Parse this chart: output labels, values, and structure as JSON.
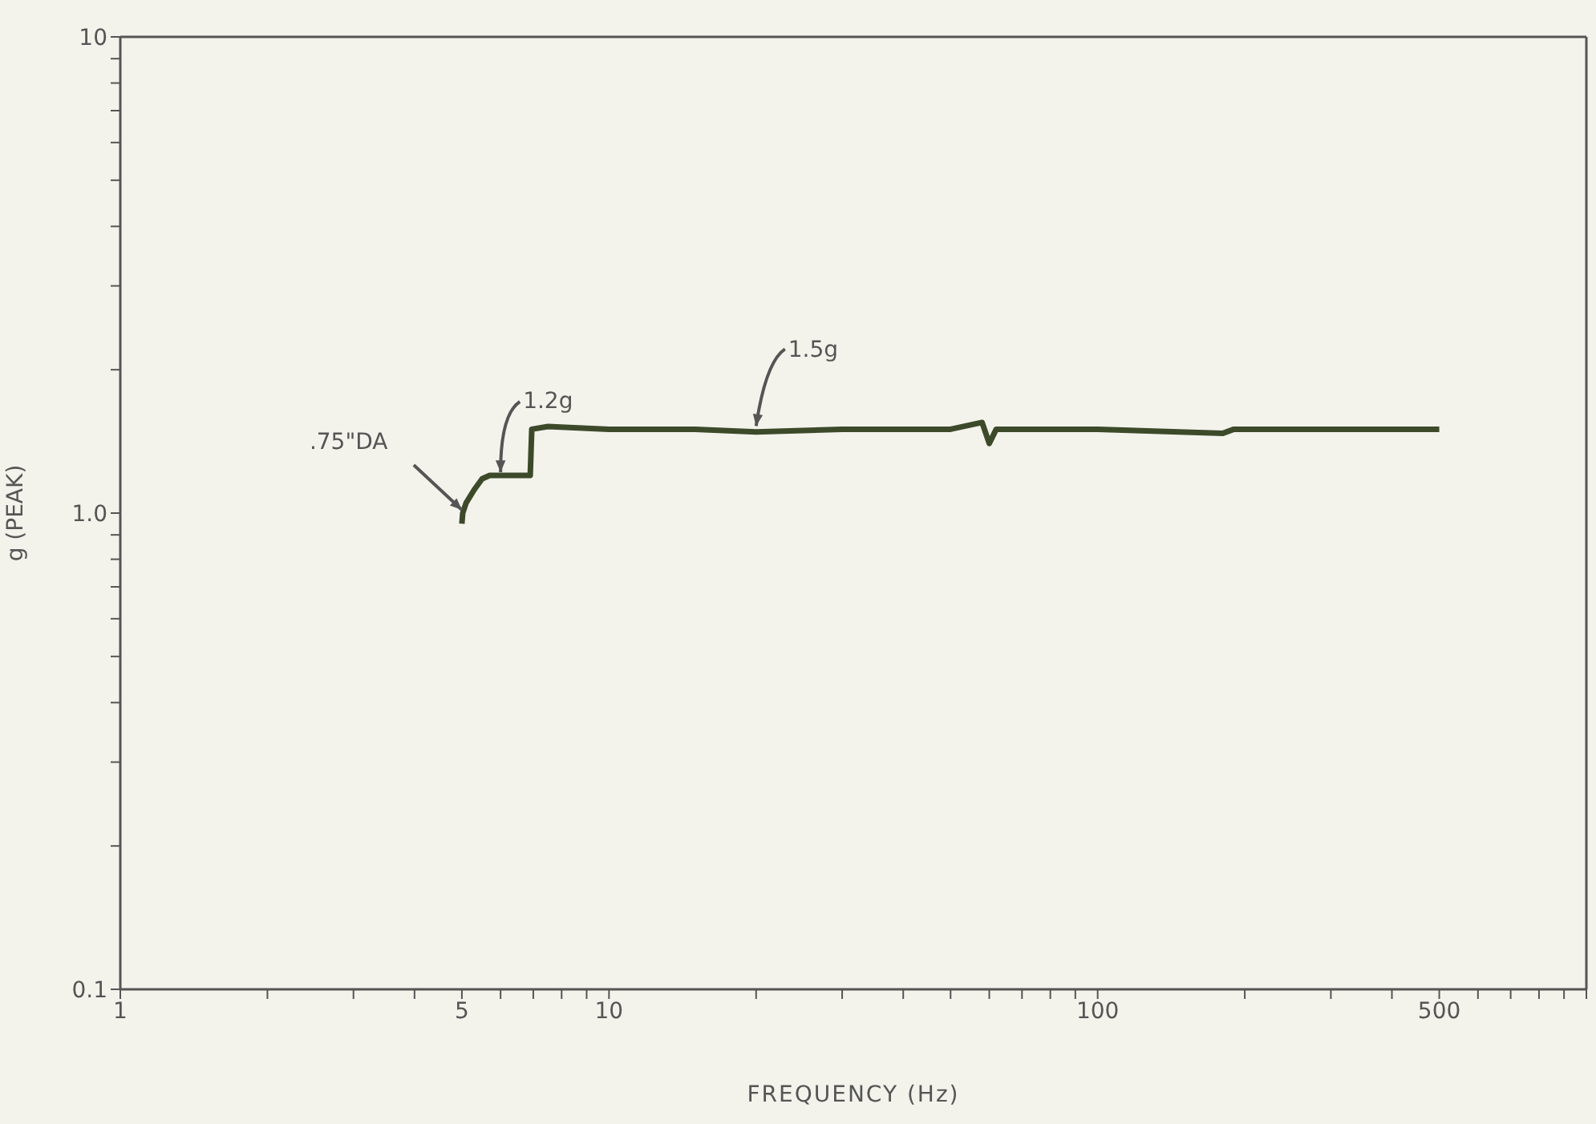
{
  "chart_data": {
    "type": "line",
    "xlabel": "FREQUENCY (Hz)",
    "ylabel": "g (PEAK)",
    "log": "xy",
    "x": [
      5,
      5.02,
      5.1,
      5.3,
      5.5,
      5.7,
      6.9,
      6.95,
      7.5,
      10,
      15,
      20,
      30,
      50,
      58,
      60,
      62,
      100,
      180,
      190,
      300,
      500
    ],
    "series": [
      {
        "color": "#3d4a2a",
        "values": [
          0.95,
          1.0,
          1.05,
          1.12,
          1.18,
          1.2,
          1.2,
          1.5,
          1.52,
          1.5,
          1.5,
          1.48,
          1.5,
          1.5,
          1.55,
          1.4,
          1.5,
          1.5,
          1.47,
          1.5,
          1.5,
          1.5
        ]
      }
    ],
    "xlim": [
      1,
      1000
    ],
    "xticks": [
      1,
      {
        "value": 2,
        "label": null
      },
      {
        "value": 3,
        "label": null
      },
      {
        "value": 4,
        "label": null
      },
      5,
      {
        "value": 6,
        "label": null
      },
      {
        "value": 7,
        "label": null
      },
      {
        "value": 8,
        "label": null
      },
      {
        "value": 9,
        "label": null
      },
      10,
      {
        "value": 20,
        "label": null
      },
      {
        "value": 30,
        "label": null
      },
      {
        "value": 40,
        "label": null
      },
      {
        "value": 50,
        "label": null
      },
      {
        "value": 60,
        "label": null
      },
      {
        "value": 70,
        "label": null
      },
      {
        "value": 80,
        "label": null
      },
      {
        "value": 90,
        "label": null
      },
      100,
      {
        "value": 200,
        "label": null
      },
      {
        "value": 300,
        "label": null
      },
      {
        "value": 400,
        "label": null
      },
      500,
      {
        "value": 600,
        "label": null
      },
      {
        "value": 700,
        "label": null
      },
      {
        "value": 800,
        "label": null
      },
      {
        "value": 900,
        "label": null
      },
      {
        "value": 1000,
        "label": null
      }
    ],
    "ylim": [
      0.1,
      10
    ],
    "yticks": [
      0.1,
      {
        "value": 0.2,
        "label": null
      },
      {
        "value": 0.3,
        "label": null
      },
      {
        "value": 0.4,
        "label": null
      },
      {
        "value": 0.5,
        "label": null
      },
      {
        "value": 0.6,
        "label": null
      },
      {
        "value": 0.7,
        "label": null
      },
      {
        "value": 0.8,
        "label": null
      },
      {
        "value": 0.9,
        "label": null
      },
      {
        "value": 1,
        "label": "1.0"
      },
      {
        "value": 2,
        "label": null
      },
      {
        "value": 3,
        "label": null
      },
      {
        "value": 4,
        "label": null
      },
      {
        "value": 5,
        "label": null
      },
      {
        "value": 6,
        "label": null
      },
      {
        "value": 7,
        "label": null
      },
      {
        "value": 8,
        "label": null
      },
      {
        "value": 9,
        "label": null
      },
      10
    ],
    "annotations": [
      {
        "text": ".75\"DA",
        "x": 5,
        "y": 1.0
      },
      {
        "text": "1.2g",
        "x": 6,
        "y": 1.2
      },
      {
        "text": "1.5g",
        "x": 20,
        "y": 1.5
      }
    ]
  }
}
